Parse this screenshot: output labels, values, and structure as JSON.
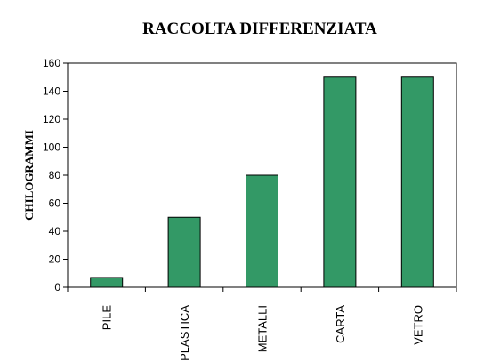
{
  "chart_data": {
    "type": "bar",
    "title": "RACCOLTA DIFFERENZIATA",
    "xlabel": "",
    "ylabel": "CHILOGRAMMI",
    "categories": [
      "PILE",
      "PLASTICA",
      "METALLI",
      "CARTA",
      "VETRO"
    ],
    "values": [
      7,
      50,
      80,
      150,
      150
    ],
    "ylim": [
      0,
      160
    ],
    "yticks": [
      0,
      20,
      40,
      60,
      80,
      100,
      120,
      140,
      160
    ],
    "grid": false,
    "legend": "none",
    "bar_color": "#339966"
  }
}
